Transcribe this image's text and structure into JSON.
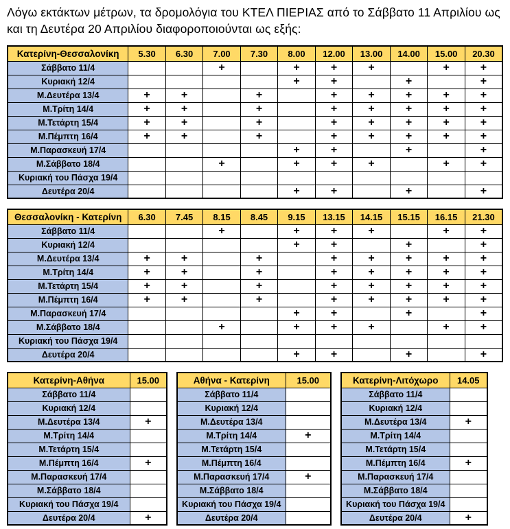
{
  "page": {
    "intro": "Λόγω εκτάκτων μέτρων, τα δρομολόγια του ΚΤΕΛ ΠΙΕΡΙΑΣ από το Σάββατο 11 Απριλίου ως και τη Δευτέρα 20 Απριλίου διαφοροποιούνται ως εξής:"
  },
  "colors": {
    "header_bg": "#FFD966",
    "day_bg": "#B4C6E7",
    "border": "#000000",
    "text": "#000000"
  },
  "plus_symbol": "+",
  "days": [
    "Σάββατο 11/4",
    "Κυριακή 12/4",
    "Μ.Δευτέρα 13/4",
    "Μ.Τρίτη 14/4",
    "Μ.Τετάρτη 15/4",
    "Μ.Πέμπτη 16/4",
    "Μ.Παρασκευή 17/4",
    "Μ.Σάββατο 18/4",
    "Κυριακή του Πάσχα 19/4",
    "Δευτέρα 20/4"
  ],
  "tables": [
    {
      "id": "katerini-thessaloniki",
      "route": "Κατερίνη-Θεσσαλονίκη",
      "times": [
        "5.30",
        "6.30",
        "7.00",
        "7.30",
        "8.00",
        "12.00",
        "13.00",
        "14.00",
        "15.00",
        "20.30"
      ],
      "marks": [
        [
          0,
          0,
          1,
          0,
          1,
          1,
          1,
          0,
          1,
          1
        ],
        [
          0,
          0,
          0,
          0,
          1,
          1,
          0,
          1,
          0,
          1
        ],
        [
          1,
          1,
          0,
          1,
          0,
          1,
          1,
          1,
          1,
          1
        ],
        [
          1,
          1,
          0,
          1,
          0,
          1,
          1,
          1,
          1,
          1
        ],
        [
          1,
          1,
          0,
          1,
          0,
          1,
          1,
          1,
          1,
          1
        ],
        [
          1,
          1,
          0,
          1,
          0,
          1,
          1,
          1,
          1,
          1
        ],
        [
          0,
          0,
          0,
          0,
          1,
          1,
          0,
          1,
          0,
          1
        ],
        [
          0,
          0,
          1,
          0,
          1,
          1,
          1,
          0,
          1,
          1
        ],
        [
          0,
          0,
          0,
          0,
          0,
          0,
          0,
          0,
          0,
          0
        ],
        [
          0,
          0,
          0,
          0,
          1,
          1,
          0,
          1,
          0,
          1
        ]
      ]
    },
    {
      "id": "thessaloniki-katerini",
      "route": "Θεσσαλονίκη - Κατερίνη",
      "times": [
        "6.30",
        "7.45",
        "8.15",
        "8.45",
        "9.15",
        "13.15",
        "14.15",
        "15.15",
        "16.15",
        "21.30"
      ],
      "marks": [
        [
          0,
          0,
          1,
          0,
          1,
          1,
          1,
          0,
          1,
          1
        ],
        [
          0,
          0,
          0,
          0,
          1,
          1,
          0,
          1,
          0,
          1
        ],
        [
          1,
          1,
          0,
          1,
          0,
          1,
          1,
          1,
          1,
          1
        ],
        [
          1,
          1,
          0,
          1,
          0,
          1,
          1,
          1,
          1,
          1
        ],
        [
          1,
          1,
          0,
          1,
          0,
          1,
          1,
          1,
          1,
          1
        ],
        [
          1,
          1,
          0,
          1,
          0,
          1,
          1,
          1,
          1,
          1
        ],
        [
          0,
          0,
          0,
          0,
          1,
          1,
          0,
          1,
          0,
          1
        ],
        [
          0,
          0,
          1,
          0,
          1,
          1,
          1,
          0,
          1,
          1
        ],
        [
          0,
          0,
          0,
          0,
          0,
          0,
          0,
          0,
          0,
          0
        ],
        [
          0,
          0,
          0,
          0,
          1,
          1,
          0,
          1,
          0,
          1
        ]
      ]
    },
    {
      "id": "katerini-athina",
      "route": "Κατερίνη-Αθήνα",
      "times": [
        "15.00"
      ],
      "marks": [
        [
          0
        ],
        [
          0
        ],
        [
          1
        ],
        [
          0
        ],
        [
          0
        ],
        [
          1
        ],
        [
          0
        ],
        [
          0
        ],
        [
          0
        ],
        [
          1
        ]
      ]
    },
    {
      "id": "athina-katerini",
      "route": "Αθήνα - Κατερίνη",
      "times": [
        "15.00"
      ],
      "marks": [
        [
          0
        ],
        [
          0
        ],
        [
          0
        ],
        [
          1
        ],
        [
          0
        ],
        [
          0
        ],
        [
          1
        ],
        [
          0
        ],
        [
          0
        ],
        [
          0
        ]
      ]
    },
    {
      "id": "katerini-litochoro",
      "route": "Κατερίνη-Λιτόχωρο",
      "times": [
        "14.05"
      ],
      "marks": [
        [
          0
        ],
        [
          0
        ],
        [
          1
        ],
        [
          0
        ],
        [
          0
        ],
        [
          1
        ],
        [
          0
        ],
        [
          0
        ],
        [
          0
        ],
        [
          1
        ]
      ]
    }
  ]
}
